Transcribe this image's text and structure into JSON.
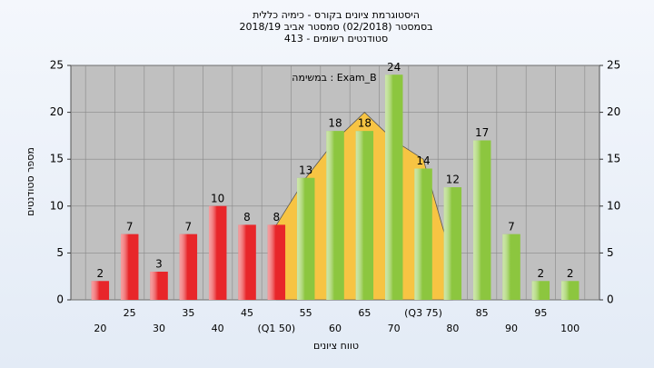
{
  "chart_data": {
    "type": "bar",
    "title": "היסטוגרמת ציונים בקורס - כימיה כללית",
    "subtitle": "בסמסטר  (02/2018)  סמסטר אביב 2018/19",
    "subtitle2": "סטודנטים רשומים - 413",
    "annotation": "במשימה : Exam_B",
    "x_label": "טווח ציונים",
    "y_label": "מספר סטודנטים",
    "categories": [
      "20",
      "25",
      "30",
      "35",
      "40",
      "45",
      "(Q1 50)",
      "55",
      "60",
      "65",
      "70",
      "(Q3 75)",
      "80",
      "85",
      "90",
      "95",
      "100"
    ],
    "values": [
      2,
      7,
      3,
      7,
      10,
      8,
      8,
      13,
      18,
      18,
      24,
      14,
      12,
      17,
      7,
      2,
      2
    ],
    "colors": [
      "#e8262a",
      "#e8262a",
      "#e8262a",
      "#e8262a",
      "#e8262a",
      "#e8262a",
      "#e8262a",
      "#8cc63f",
      "#8cc63f",
      "#8cc63f",
      "#8cc63f",
      "#8cc63f",
      "#8cc63f",
      "#8cc63f",
      "#8cc63f",
      "#8cc63f",
      "#8cc63f"
    ],
    "curve_values": [
      null,
      null,
      null,
      null,
      null,
      null,
      8,
      13,
      17,
      20,
      17,
      15,
      4,
      null,
      null,
      null,
      null
    ],
    "curve_color": "#f7c443",
    "ylim": [
      0,
      25
    ],
    "yticks": [
      0,
      5,
      10,
      15,
      20,
      25
    ],
    "grid": true
  }
}
